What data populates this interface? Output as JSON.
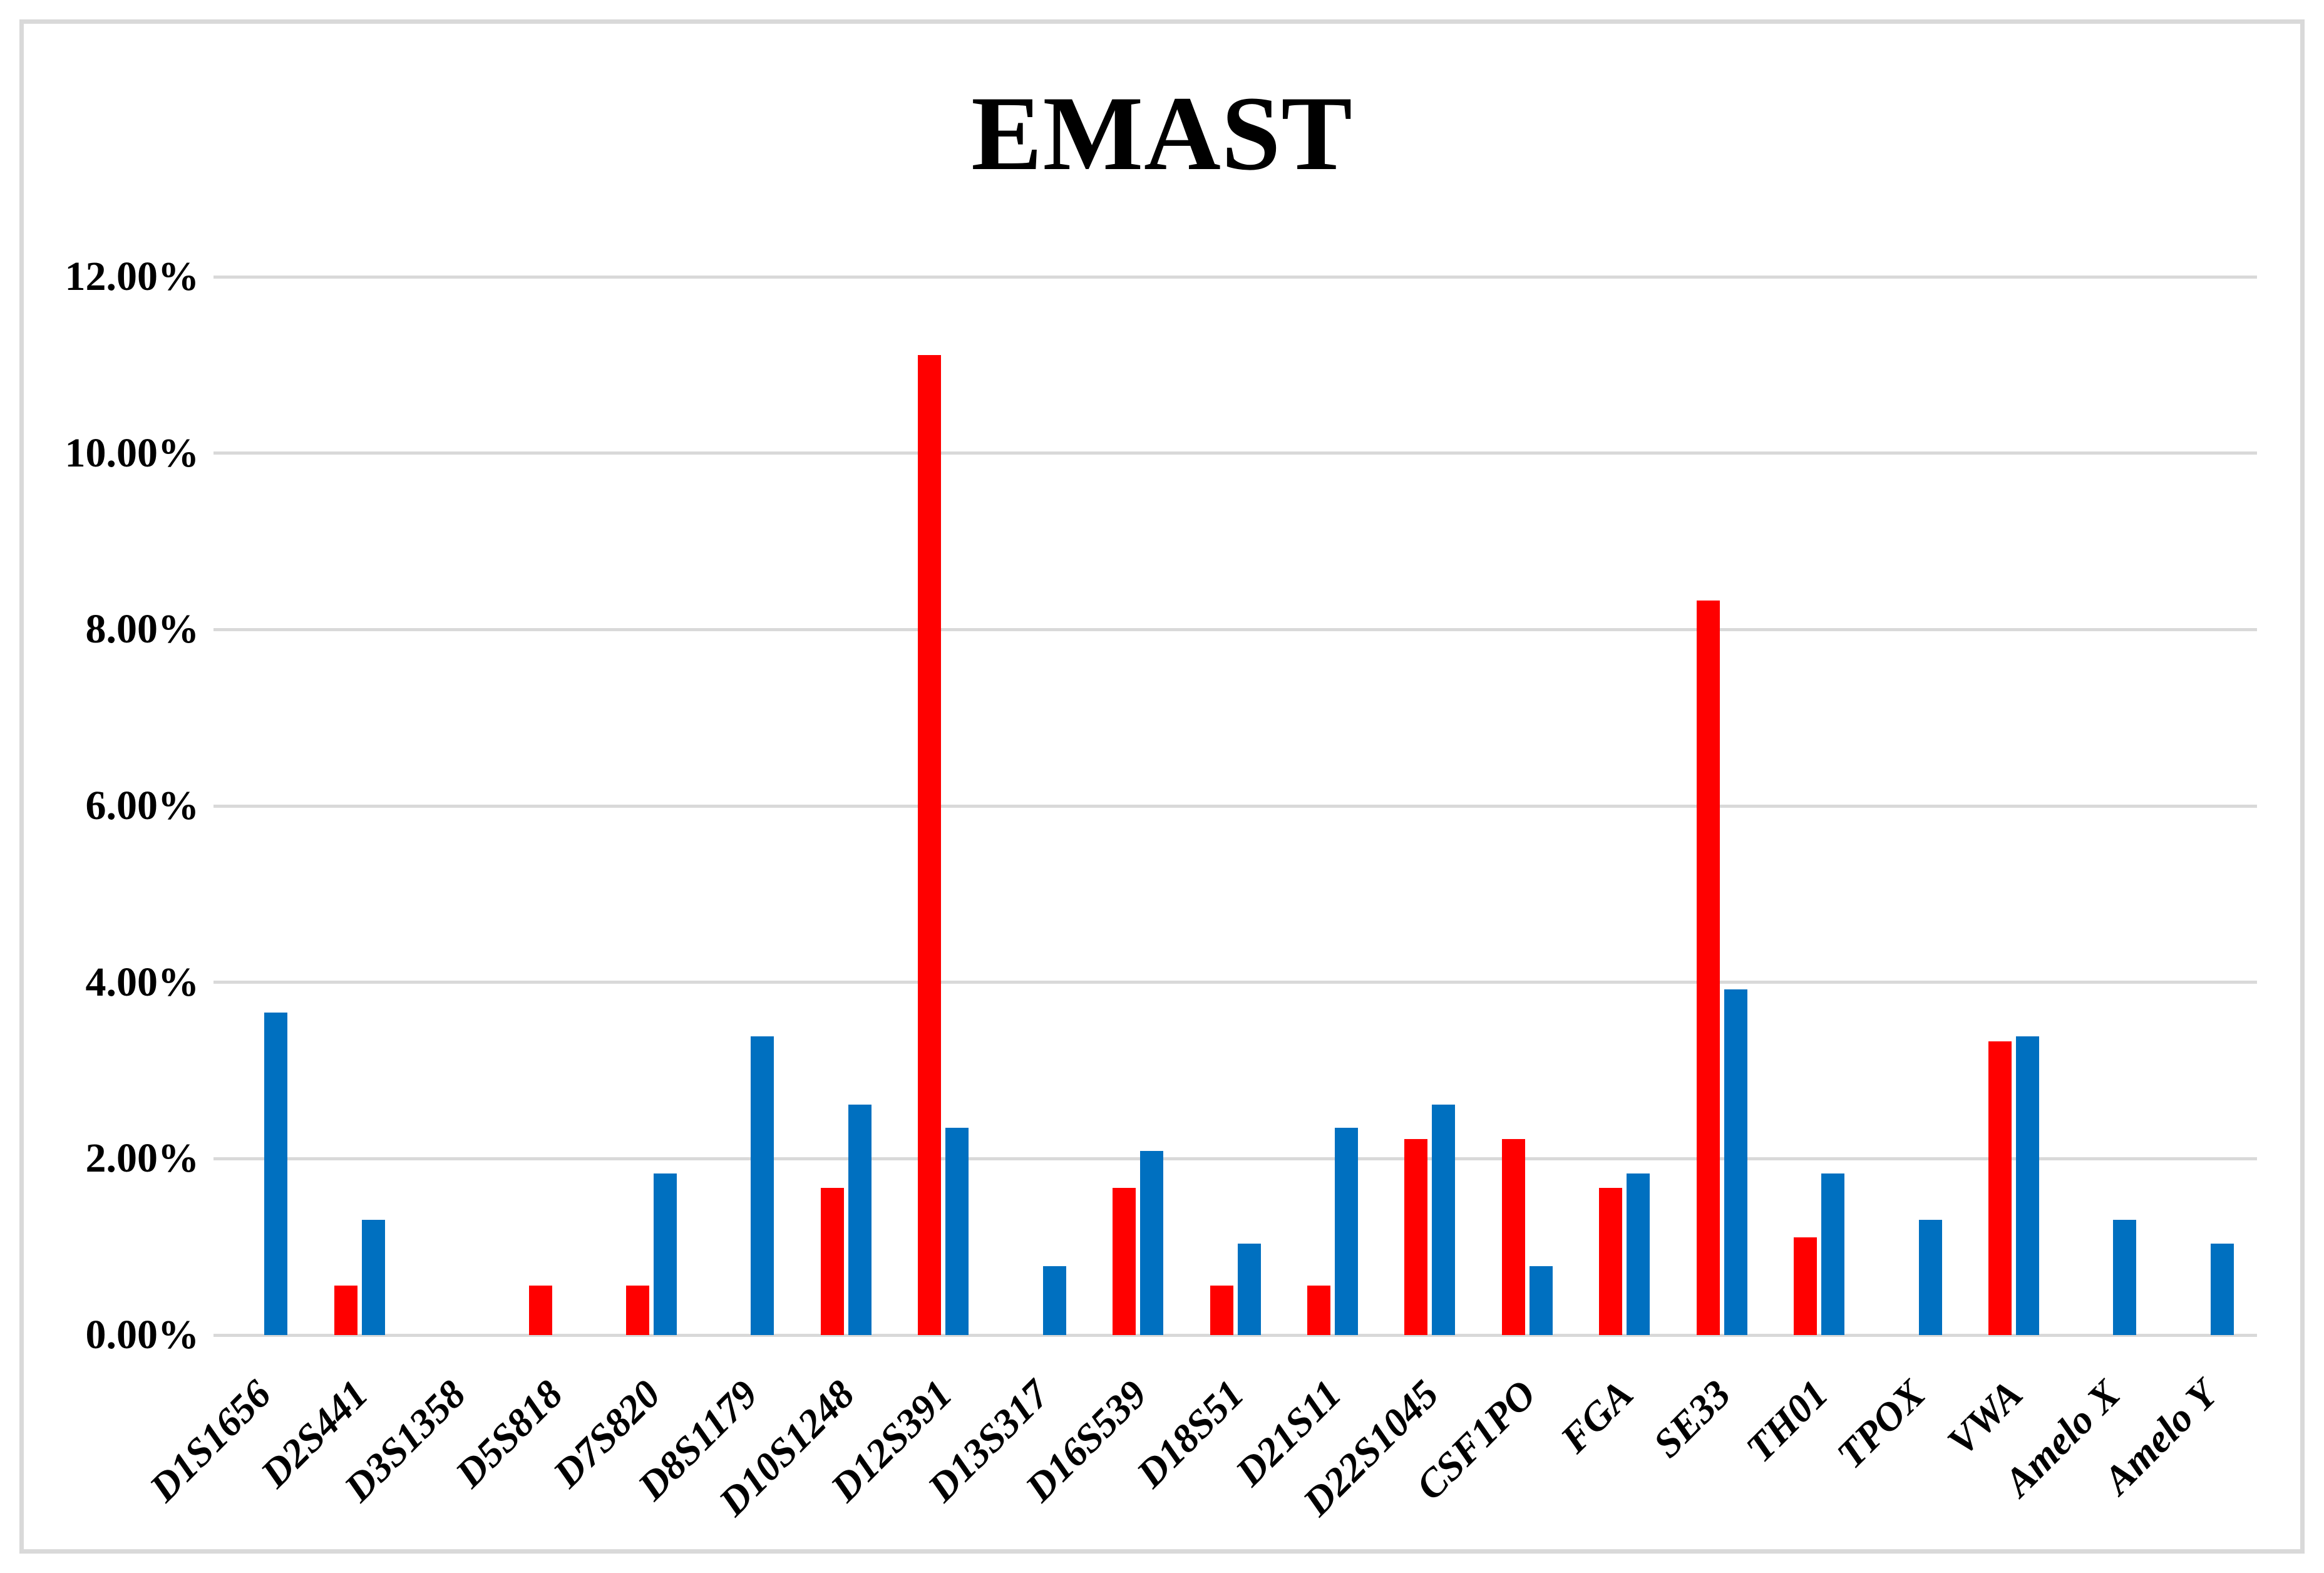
{
  "title": "EMAST",
  "colors": {
    "series_red": "#FF0000",
    "series_blue": "#0070C0",
    "gridline": "#D9D9D9",
    "figure_border": "#D9D9D9",
    "text": "#000000"
  },
  "chart_data": {
    "type": "bar",
    "title": "EMAST",
    "categories": [
      "D1S1656",
      "D2S441",
      "D3S1358",
      "D5S818",
      "D7S820",
      "D8S1179",
      "D10S1248",
      "D12S391",
      "D13S317",
      "D16S539",
      "D18S51",
      "D21S11",
      "D22S1045",
      "CSF1PO",
      "FGA",
      "SE33",
      "TH01",
      "TPOX",
      "VWA",
      "Amelo X",
      "Amelo Y"
    ],
    "series": [
      {
        "name": "red",
        "color": "#FF0000",
        "values_percent": [
          0,
          0.56,
          0,
          0.56,
          0.56,
          0,
          1.67,
          11.11,
          0,
          1.67,
          0.56,
          0.56,
          2.22,
          2.22,
          1.67,
          8.33,
          1.11,
          0,
          3.33,
          0,
          0
        ]
      },
      {
        "name": "blue",
        "color": "#0070C0",
        "values_percent": [
          3.66,
          1.31,
          0,
          0,
          1.83,
          3.39,
          2.61,
          2.35,
          0.78,
          2.09,
          1.04,
          2.35,
          2.61,
          0.78,
          1.83,
          3.92,
          1.83,
          1.31,
          3.39,
          1.31,
          1.04
        ]
      }
    ],
    "xlabel": "",
    "ylabel": "",
    "ylim": [
      0,
      12
    ],
    "y_tick_step": 2,
    "y_tick_labels": [
      "12.00%",
      "10.00%",
      "8.00%",
      "6.00%",
      "4.00%",
      "2.00%",
      "0.00%"
    ],
    "grid": "horizontal",
    "legend": "none",
    "note_zero_values_render_no_bar": true
  }
}
